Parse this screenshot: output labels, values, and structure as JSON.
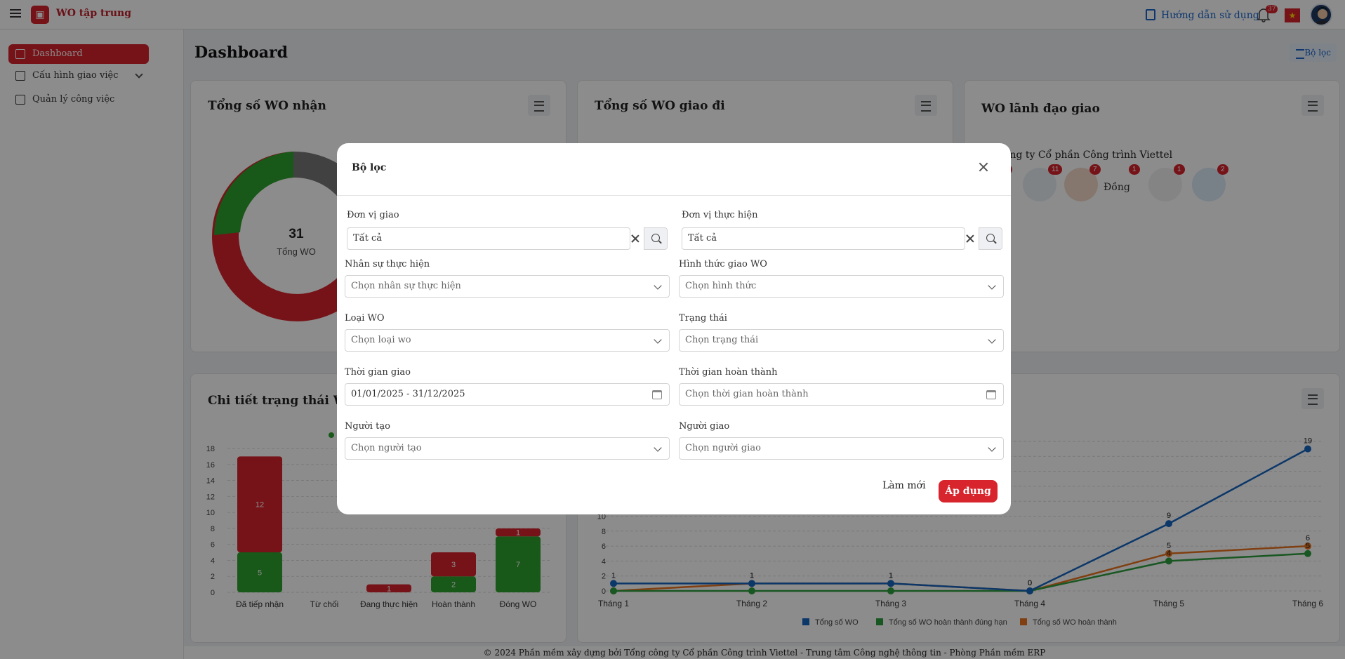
{
  "header": {
    "app_title": "WO tập trung",
    "guide_label": "Hướng dẫn sử dụng",
    "notification_count": "37"
  },
  "sidebar": {
    "items": [
      {
        "label": "Dashboard",
        "icon": "grid-icon"
      },
      {
        "label": "Cấu hình giao việc",
        "icon": "document-icon"
      },
      {
        "label": "Quản lý công việc",
        "icon": "briefcase-icon"
      }
    ]
  },
  "page": {
    "title": "Dashboard",
    "filter_button": "Bộ lọc"
  },
  "cards": {
    "received": {
      "title": "Tổng số WO nhận",
      "total": "31",
      "total_label": "Tổng WO"
    },
    "sent": {
      "title": "Tổng số WO giao đi"
    },
    "leader": {
      "title": "WO lãnh đạo giao",
      "company": "ông ty Cổ phần Công trình Viettel",
      "badges": [
        "1",
        "11",
        "7",
        "1",
        "1",
        "2"
      ],
      "broken_image_label": "Đồng"
    },
    "status_detail": {
      "title": "Chi tiết trạng thái WO"
    }
  },
  "chart_data": [
    {
      "type": "bar",
      "title": "Chi tiết trạng thái WO",
      "categories": [
        "Đã tiếp nhận",
        "Từ chối",
        "Đang thực hiện",
        "Hoàn thành",
        "Đóng WO"
      ],
      "series": [
        {
          "values": [
            5,
            0,
            0,
            2,
            7
          ],
          "color": "#2ca02c"
        },
        {
          "values": [
            12,
            0,
            1,
            3,
            1
          ],
          "color": "#d8242c"
        }
      ],
      "ylim": [
        0,
        18
      ],
      "yticks": [
        0,
        2,
        4,
        6,
        8,
        10,
        12,
        14,
        16,
        18
      ],
      "stacked": true
    },
    {
      "type": "line",
      "categories": [
        "Tháng 1",
        "Tháng 2",
        "Tháng 3",
        "Tháng 4",
        "Tháng 5",
        "Tháng 6"
      ],
      "series": [
        {
          "name": "Tổng số WO",
          "values": [
            1,
            1,
            1,
            0,
            9,
            19
          ],
          "color": "#1565c0"
        },
        {
          "name": "Tổng số WO hoàn thành đúng hạn",
          "values": [
            0,
            0,
            0,
            0,
            4,
            5
          ],
          "color": "#2e9e3e"
        },
        {
          "name": "Tổng số WO hoàn thành",
          "values": [
            0,
            1,
            1,
            0,
            5,
            6
          ],
          "color": "#e8731f"
        }
      ],
      "yticks": [
        0,
        2,
        4,
        6,
        8,
        10
      ],
      "ylim": [
        0,
        20
      ]
    }
  ],
  "modal": {
    "title": "Bộ lọc",
    "fields": {
      "don_vi_giao": {
        "label": "Đơn vị giao",
        "value": "Tất cả"
      },
      "don_vi_thuc_hien": {
        "label": "Đơn vị thực hiện",
        "value": "Tất cả"
      },
      "nhan_su": {
        "label": "Nhân sự thực hiện",
        "placeholder": "Chọn nhân sự thực hiện"
      },
      "hinh_thuc": {
        "label": "Hình thức giao WO",
        "placeholder": "Chọn hình thức"
      },
      "loai_wo": {
        "label": "Loại WO",
        "placeholder": "Chọn loại wo"
      },
      "trang_thai": {
        "label": "Trạng thái",
        "placeholder": "Chọn trạng thái"
      },
      "thoi_gian_giao": {
        "label": "Thời gian giao",
        "value": "01/01/2025 - 31/12/2025"
      },
      "thoi_gian_hoan_thanh": {
        "label": "Thời gian hoàn thành",
        "placeholder": "Chọn thời gian hoàn thành"
      },
      "nguoi_tao": {
        "label": "Người tạo",
        "placeholder": "Chọn người tạo"
      },
      "nguoi_giao": {
        "label": "Người giao",
        "placeholder": "Chọn người giao"
      }
    },
    "reset_label": "Làm mới",
    "apply_label": "Áp dụng"
  },
  "footer": {
    "text": "© 2024 Phần mềm xây dựng bởi Tổng công ty Cổ phần Công trình Viettel - Trung tâm Công nghệ thông tin - Phòng Phần mềm ERP"
  }
}
